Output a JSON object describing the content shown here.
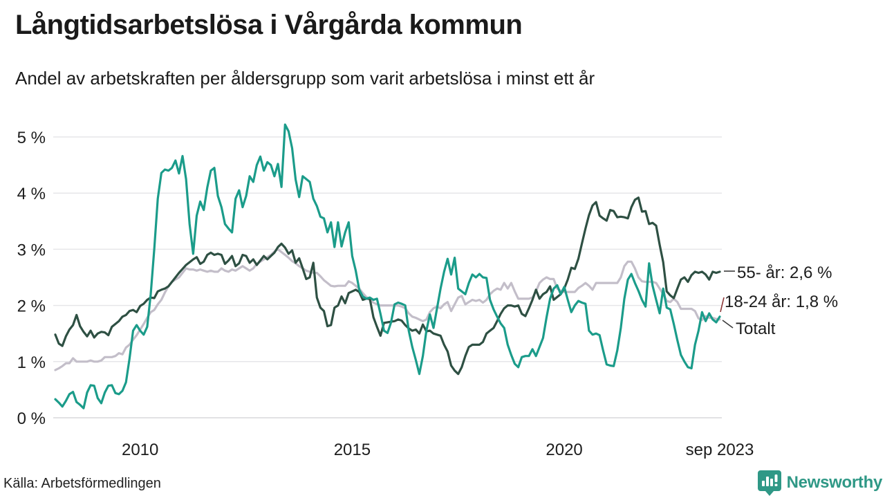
{
  "header": {
    "title": "Långtidsarbetslösa i Vårgårda kommun",
    "subtitle": "Andel av arbetskraften per åldersgrupp som varit arbetslösa i minst ett år"
  },
  "footer": {
    "source": "Källa: Arbetsförmedlingen",
    "brand": "Newsworthy",
    "brand_icon": "bar-chart-pin-icon",
    "brand_color": "#2f9886"
  },
  "chart_data": {
    "type": "line",
    "title": "Långtidsarbetslösa i Vårgårda kommun",
    "x_start": "2008-01",
    "x_end": "2023-09",
    "interval": "monthly",
    "grid": "horizontal-only",
    "ylim": [
      0,
      5.4
    ],
    "y_tick_labels": [
      "0 %",
      "1 %",
      "2 %",
      "3 %",
      "4 %",
      "5 %"
    ],
    "x_ticks": [
      {
        "index": 24,
        "label": "2010"
      },
      {
        "index": 84,
        "label": "2015"
      },
      {
        "index": 144,
        "label": "2020"
      },
      {
        "index": 188,
        "label": "sep 2023"
      }
    ],
    "draw_order": [
      2,
      0,
      1
    ],
    "series": [
      {
        "name": "55- år",
        "end_label": "55- år: 2,6 %",
        "end_value_text": "2,6 %",
        "color": "#2e5043",
        "values": [
          1.48,
          1.32,
          1.28,
          1.45,
          1.57,
          1.65,
          1.83,
          1.63,
          1.53,
          1.45,
          1.55,
          1.43,
          1.5,
          1.53,
          1.52,
          1.47,
          1.62,
          1.67,
          1.72,
          1.8,
          1.83,
          1.9,
          1.92,
          1.88,
          1.99,
          2.03,
          2.1,
          2.14,
          2.13,
          2.25,
          2.28,
          2.3,
          2.34,
          2.42,
          2.5,
          2.58,
          2.65,
          2.72,
          2.77,
          2.82,
          2.86,
          2.74,
          2.78,
          2.9,
          2.94,
          2.9,
          2.92,
          2.9,
          2.74,
          2.8,
          2.88,
          2.7,
          2.75,
          2.9,
          2.88,
          2.76,
          2.82,
          2.72,
          2.8,
          2.88,
          2.82,
          2.88,
          2.94,
          3.04,
          3.1,
          3.03,
          2.92,
          2.98,
          2.76,
          2.84,
          2.66,
          2.47,
          2.5,
          2.76,
          2.14,
          1.96,
          1.9,
          1.63,
          1.65,
          1.96,
          2.0,
          2.16,
          2.04,
          2.22,
          2.25,
          2.28,
          2.24,
          2.1,
          2.12,
          2.12,
          1.79,
          1.62,
          1.46,
          1.69,
          1.7,
          1.71,
          1.72,
          1.75,
          1.73,
          1.65,
          1.59,
          1.55,
          1.57,
          1.5,
          1.66,
          1.54,
          1.55,
          1.5,
          1.48,
          1.46,
          1.3,
          1.18,
          0.93,
          0.84,
          0.78,
          0.9,
          1.1,
          1.26,
          1.3,
          1.3,
          1.3,
          1.35,
          1.5,
          1.55,
          1.6,
          1.72,
          1.85,
          1.95,
          2.0,
          2.0,
          1.98,
          2.0,
          1.85,
          1.81,
          1.95,
          2.1,
          2.28,
          2.12,
          2.2,
          2.24,
          2.34,
          2.1,
          2.15,
          2.2,
          2.3,
          2.46,
          2.67,
          2.65,
          2.83,
          3.1,
          3.37,
          3.61,
          3.78,
          3.84,
          3.6,
          3.55,
          3.51,
          3.7,
          3.68,
          3.57,
          3.58,
          3.57,
          3.55,
          3.75,
          3.88,
          3.92,
          3.67,
          3.68,
          3.45,
          3.47,
          3.42,
          3.08,
          2.77,
          2.25,
          2.18,
          2.13,
          2.3,
          2.46,
          2.5,
          2.42,
          2.54,
          2.6,
          2.58,
          2.6,
          2.55,
          2.46,
          2.6,
          2.58,
          2.6
        ]
      },
      {
        "name": "18-24 år",
        "end_label": "18-24 år: 1,8 %",
        "end_value_text": "1,8 %",
        "color": "#1b9c8a",
        "values": [
          0.33,
          0.27,
          0.2,
          0.3,
          0.42,
          0.46,
          0.28,
          0.23,
          0.17,
          0.45,
          0.58,
          0.57,
          0.35,
          0.26,
          0.45,
          0.57,
          0.58,
          0.44,
          0.42,
          0.48,
          0.63,
          1.05,
          1.55,
          1.65,
          1.55,
          1.48,
          1.62,
          2.2,
          3.0,
          3.9,
          4.36,
          4.42,
          4.4,
          4.45,
          4.58,
          4.35,
          4.66,
          4.25,
          3.45,
          2.92,
          3.6,
          3.85,
          3.7,
          4.1,
          4.4,
          4.45,
          3.95,
          3.75,
          3.45,
          3.37,
          3.3,
          3.9,
          4.05,
          3.75,
          3.95,
          4.3,
          4.2,
          4.5,
          4.65,
          4.4,
          4.55,
          4.5,
          4.3,
          4.52,
          4.11,
          5.22,
          5.1,
          4.8,
          4.24,
          3.93,
          4.3,
          4.25,
          4.2,
          3.9,
          3.77,
          3.58,
          3.55,
          3.3,
          3.48,
          3.04,
          3.48,
          3.05,
          3.3,
          3.48,
          2.88,
          2.62,
          2.28,
          2.16,
          2.12,
          2.14,
          2.1,
          2.12,
          1.85,
          1.55,
          1.51,
          1.7,
          2.02,
          2.05,
          2.03,
          2.0,
          1.55,
          1.26,
          1.03,
          0.78,
          1.1,
          1.55,
          1.84,
          1.6,
          1.95,
          2.3,
          2.6,
          2.83,
          2.55,
          2.85,
          2.3,
          2.25,
          2.2,
          2.4,
          2.55,
          2.5,
          2.56,
          2.5,
          2.49,
          2.1,
          1.93,
          1.8,
          1.68,
          1.6,
          1.3,
          1.12,
          0.96,
          0.9,
          1.08,
          1.1,
          1.1,
          1.22,
          1.1,
          1.26,
          1.42,
          1.79,
          2.12,
          2.3,
          2.36,
          2.2,
          2.33,
          2.1,
          1.88,
          2.0,
          2.08,
          2.05,
          2.03,
          1.55,
          1.48,
          1.5,
          1.47,
          1.2,
          0.95,
          0.93,
          0.92,
          1.2,
          1.6,
          2.12,
          2.46,
          2.56,
          2.4,
          2.26,
          2.1,
          1.98,
          2.75,
          2.35,
          2.1,
          1.86,
          2.3,
          1.96,
          1.93,
          1.67,
          1.38,
          1.12,
          1.0,
          0.9,
          0.88,
          1.3,
          1.55,
          1.88,
          1.72,
          1.86,
          1.75,
          1.7,
          1.8
        ]
      },
      {
        "name": "Totalt",
        "end_label": "Totalt",
        "end_value_text": "",
        "color": "#c3bec9",
        "values": [
          0.85,
          0.88,
          0.92,
          0.97,
          0.97,
          1.06,
          1.0,
          1.0,
          1.0,
          1.0,
          1.02,
          1.0,
          1.0,
          1.02,
          1.08,
          1.08,
          1.08,
          1.1,
          1.15,
          1.13,
          1.25,
          1.3,
          1.39,
          1.47,
          1.57,
          1.67,
          1.78,
          1.88,
          1.92,
          2.02,
          2.1,
          2.23,
          2.34,
          2.42,
          2.46,
          2.5,
          2.58,
          2.66,
          2.64,
          2.64,
          2.62,
          2.64,
          2.62,
          2.6,
          2.62,
          2.6,
          2.6,
          2.66,
          2.62,
          2.6,
          2.64,
          2.62,
          2.66,
          2.7,
          2.66,
          2.62,
          2.66,
          2.74,
          2.78,
          2.82,
          2.86,
          2.9,
          2.96,
          3.0,
          2.95,
          2.9,
          2.85,
          2.79,
          2.75,
          2.7,
          2.66,
          2.62,
          2.6,
          2.58,
          2.58,
          2.52,
          2.45,
          2.4,
          2.35,
          2.34,
          2.35,
          2.35,
          2.35,
          2.43,
          2.4,
          2.35,
          2.3,
          2.22,
          2.15,
          2.1,
          2.05,
          2.02,
          2.0,
          2.0,
          2.0,
          2.0,
          2.0,
          2.0,
          1.98,
          1.95,
          1.86,
          1.8,
          1.78,
          1.75,
          1.72,
          1.75,
          1.88,
          1.95,
          1.98,
          1.95,
          2.02,
          2.06,
          1.9,
          2.02,
          2.14,
          2.17,
          2.02,
          2.06,
          2.1,
          2.08,
          2.1,
          2.05,
          2.1,
          2.2,
          2.26,
          2.3,
          2.28,
          2.4,
          2.3,
          2.4,
          2.25,
          2.12,
          2.12,
          2.12,
          2.12,
          2.14,
          2.25,
          2.4,
          2.46,
          2.5,
          2.47,
          2.47,
          2.3,
          2.26,
          2.24,
          2.24,
          2.24,
          2.24,
          2.31,
          2.35,
          2.4,
          2.35,
          2.28,
          2.4,
          2.4,
          2.4,
          2.4,
          2.4,
          2.4,
          2.4,
          2.5,
          2.7,
          2.78,
          2.78,
          2.66,
          2.5,
          2.43,
          2.42,
          2.42,
          2.42,
          2.4,
          2.3,
          2.2,
          2.08,
          2.06,
          2.12,
          2.06,
          1.94,
          1.94,
          1.94,
          1.94,
          1.9,
          1.77,
          1.74,
          1.81,
          1.78,
          1.78,
          1.76,
          1.75
        ]
      }
    ]
  }
}
